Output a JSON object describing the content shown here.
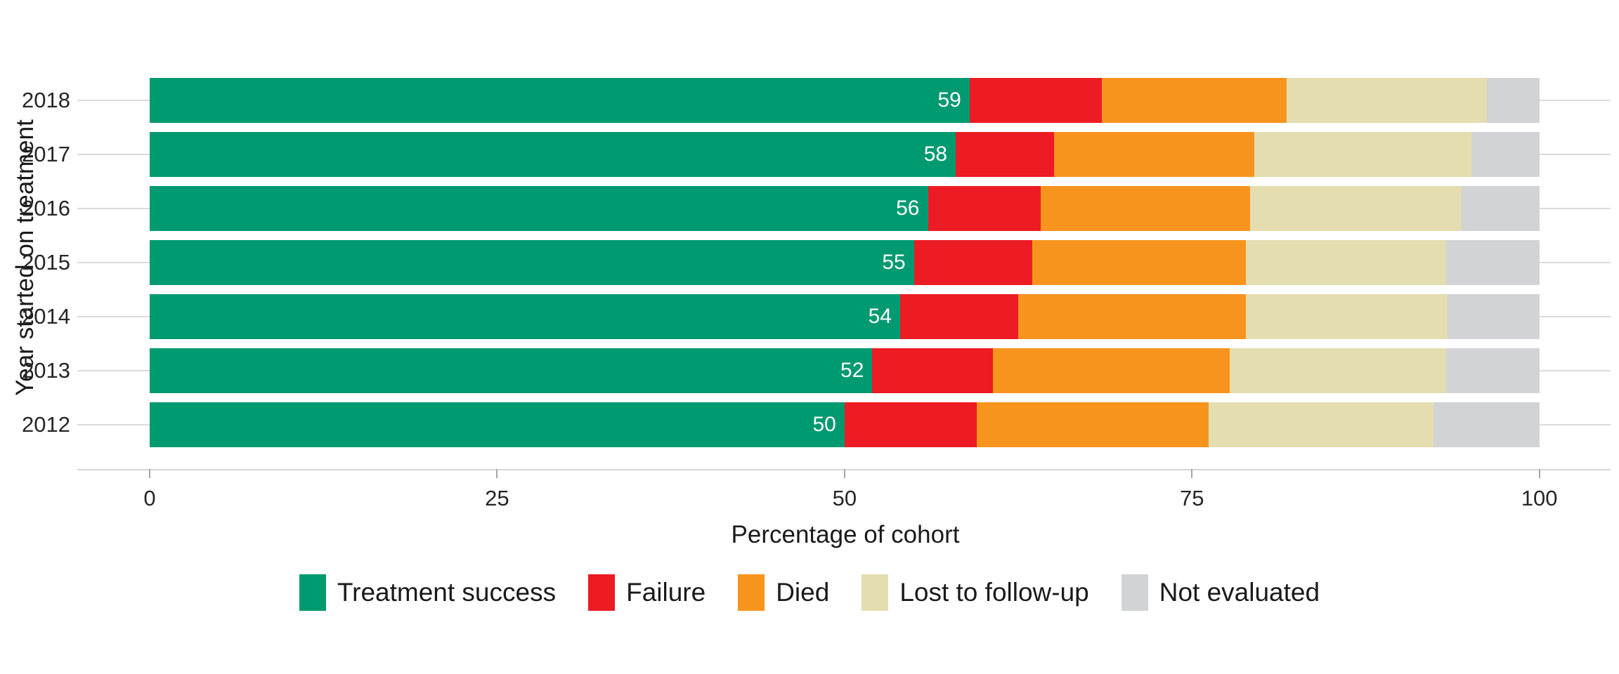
{
  "chart_data": {
    "type": "bar",
    "orientation": "horizontal",
    "stacked": true,
    "title": "",
    "xlabel": "Percentage of cohort",
    "ylabel": "Year started on treatment",
    "xlim": [
      0,
      100
    ],
    "x_ticks": [
      "0",
      "25",
      "50",
      "75",
      "100"
    ],
    "x_tick_values": [
      0,
      25,
      50,
      75,
      100
    ],
    "grid": "horizontal-only",
    "legend_position": "bottom",
    "categories": [
      "2018",
      "2017",
      "2016",
      "2015",
      "2014",
      "2013",
      "2012"
    ],
    "series": [
      {
        "name": "Treatment success",
        "color": "#009a70",
        "values": [
          59,
          58,
          56,
          55,
          54,
          52,
          50
        ]
      },
      {
        "name": "Failure",
        "color": "#ec1b24",
        "values": [
          9.5,
          7.1,
          8.1,
          8.5,
          8.5,
          8.7,
          9.5
        ]
      },
      {
        "name": "Died",
        "color": "#f7941e",
        "values": [
          13.3,
          14.4,
          15.1,
          15.4,
          16.4,
          17.0,
          16.7
        ]
      },
      {
        "name": "Lost to follow-up",
        "color": "#e4ddb0",
        "values": [
          14.4,
          15.6,
          15.2,
          14.4,
          14.5,
          15.6,
          16.2
        ]
      },
      {
        "name": "Not evaluated",
        "color": "#d2d3d5",
        "values": [
          3.8,
          4.9,
          5.6,
          6.7,
          6.6,
          6.7,
          7.6
        ]
      }
    ],
    "bar_labels": [
      "59",
      "58",
      "56",
      "55",
      "54",
      "52",
      "50"
    ],
    "bar_label_series": "Treatment success",
    "bar_label_color": "#ffffff"
  }
}
